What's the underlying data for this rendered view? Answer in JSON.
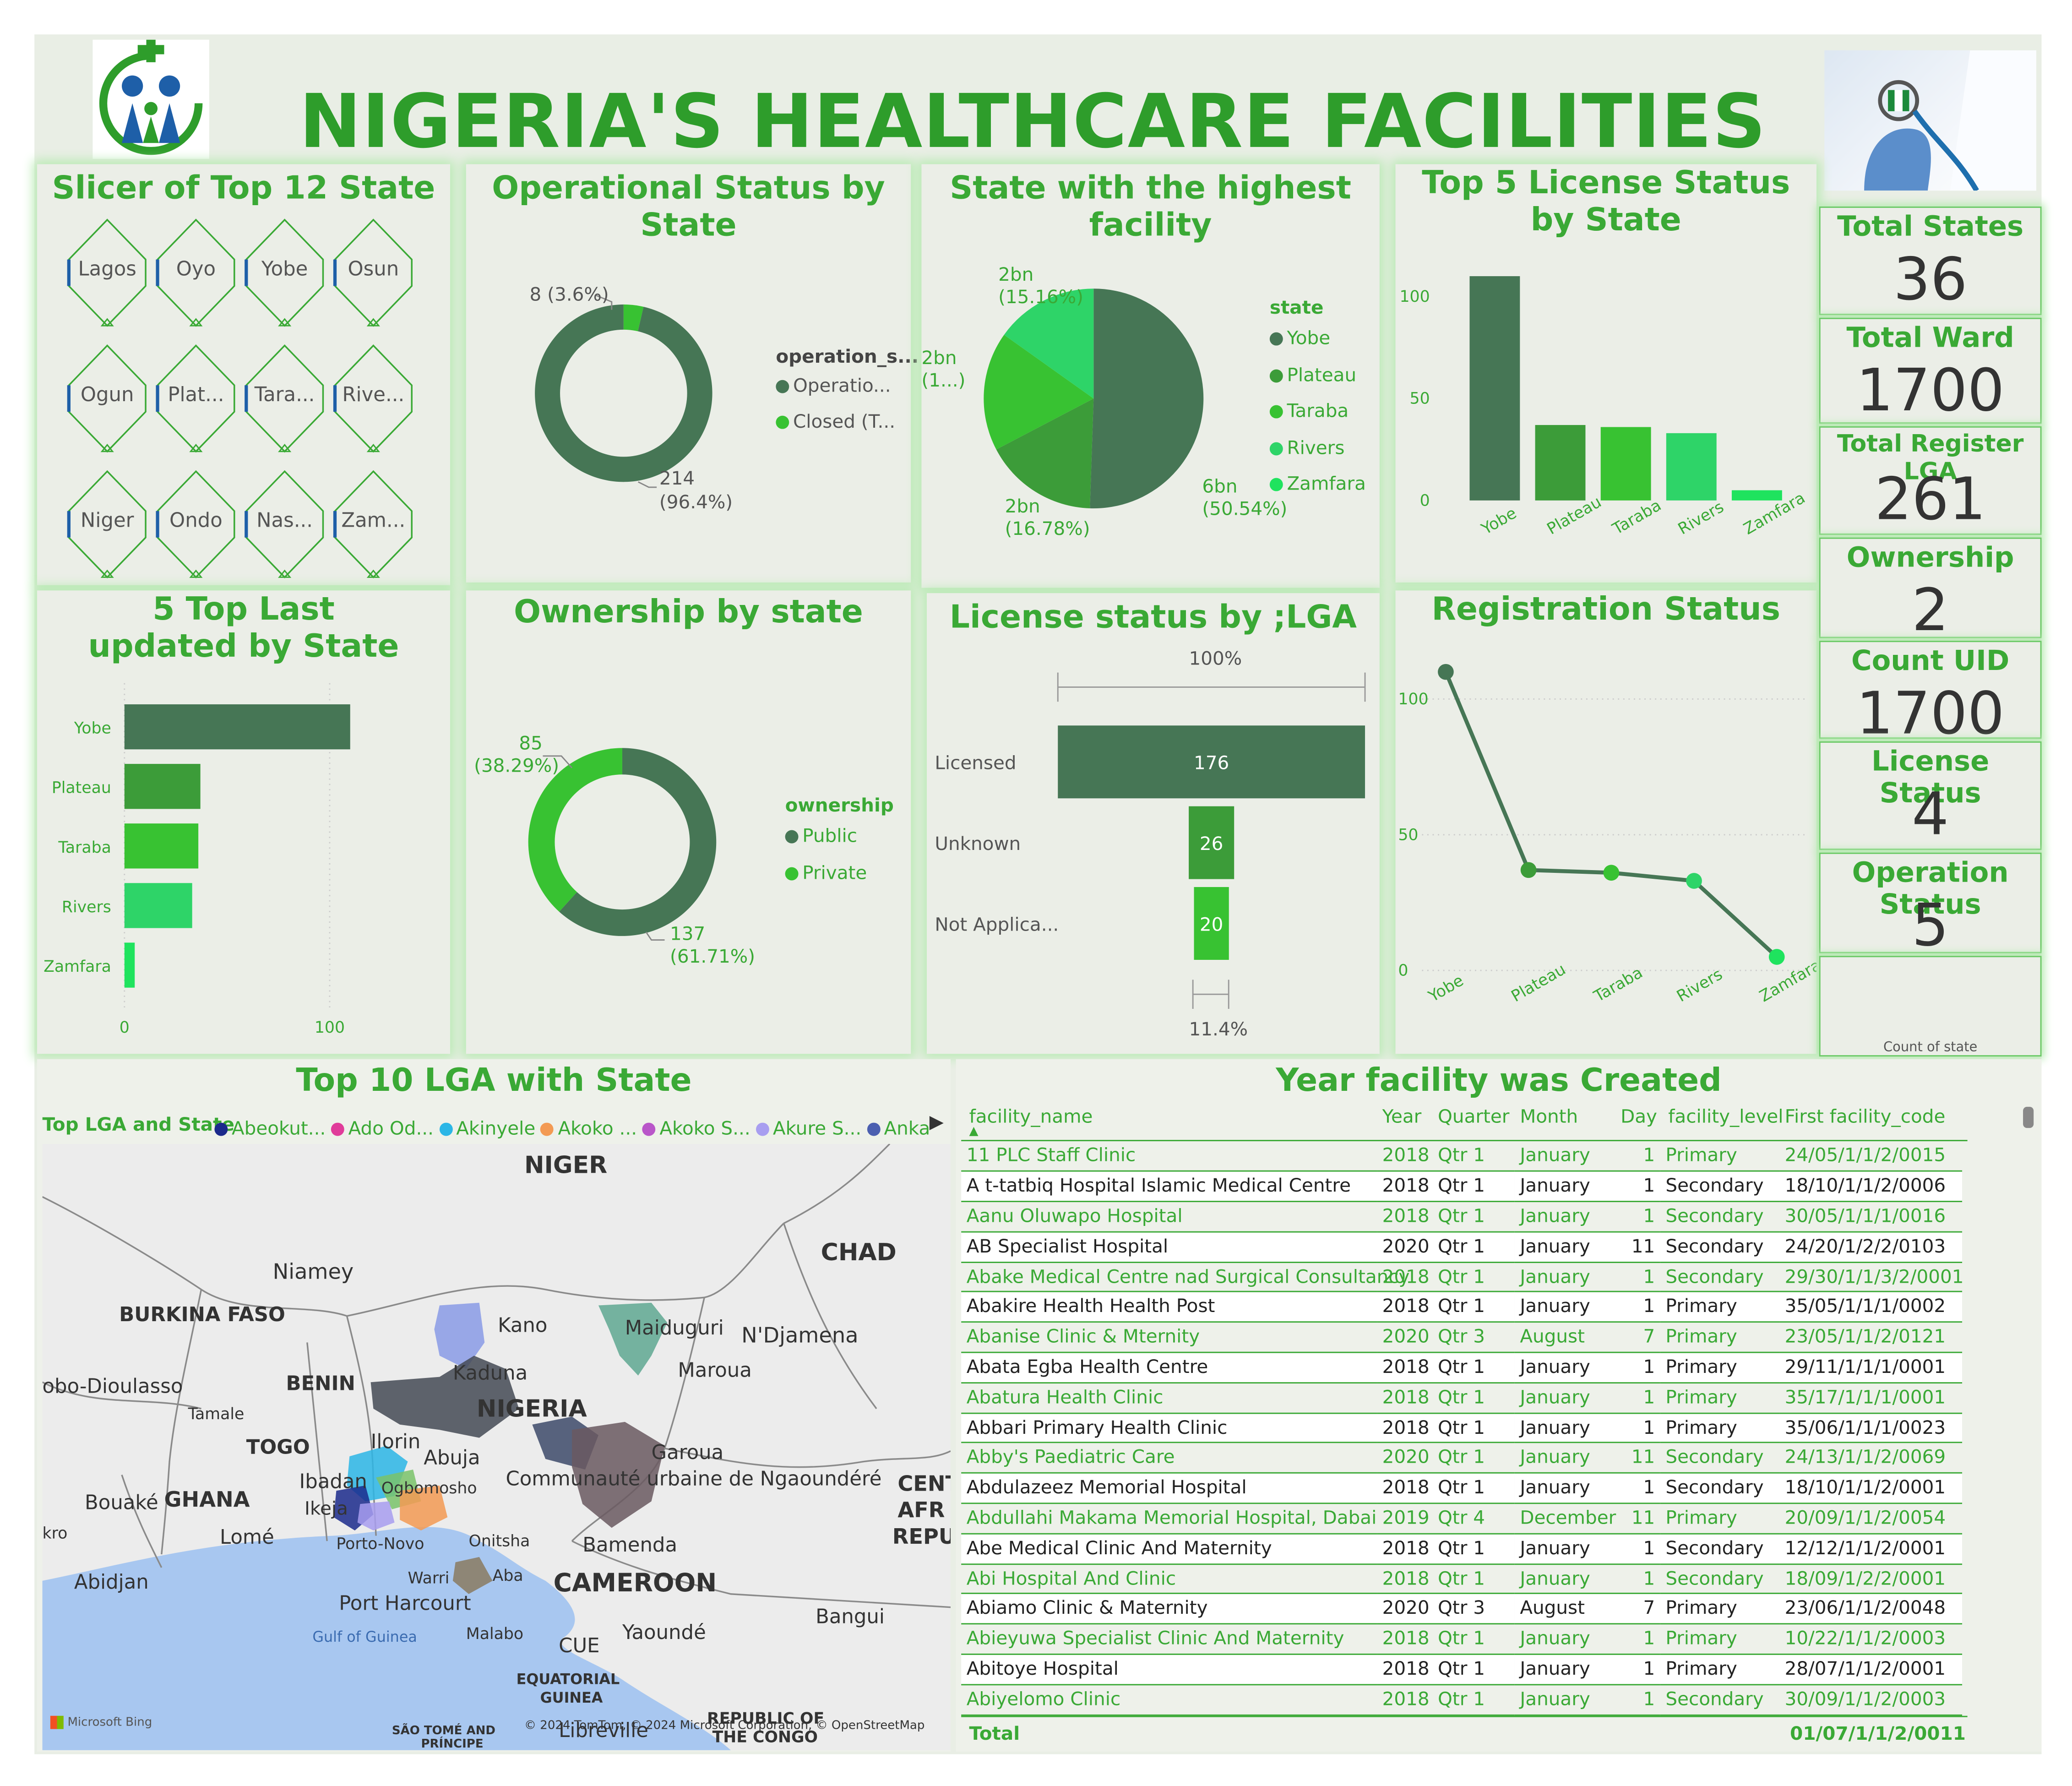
{
  "header": {
    "title": "NIGERIA'S HEALTHCARE FACILITIES"
  },
  "colors": {
    "accent": "#3aa935",
    "dark": "#467655",
    "green2": "#3c9c39",
    "green3": "#38c232",
    "green4": "#2ed468",
    "green5": "#1fe35e"
  },
  "slicer": {
    "title": "Slicer of Top 12 State",
    "items": [
      "Lagos",
      "Oyo",
      "Yobe",
      "Osun",
      "Ogun",
      "Plat...",
      "Tara...",
      "Rive...",
      "Niger",
      "Ondo",
      "Nas...",
      "Zam..."
    ]
  },
  "operational": {
    "title": "Operational Status by State",
    "legend_title": "operation_s...",
    "legend": [
      "Operatio...",
      "Closed (T..."
    ],
    "label_small": "8 (3.6%)",
    "label_big_value": "214",
    "label_big_pct": "(96.4%)"
  },
  "highest": {
    "title": "State with the highest facility",
    "legend_title": "state",
    "legend": [
      "Yobe",
      "Plateau",
      "Taraba",
      "Rivers",
      "Zamfara"
    ],
    "labels": [
      {
        "v": "6bn",
        "p": "(50.54%)"
      },
      {
        "v": "2bn",
        "p": "(16.78%)"
      },
      {
        "v": "2bn",
        "p": "(1...)"
      },
      {
        "v": "2bn",
        "p": "(15.16%)"
      }
    ]
  },
  "license_top5": {
    "title": "Top 5 License Status by State",
    "yticks": [
      "100",
      "50",
      "0"
    ]
  },
  "last_updated": {
    "title": "5 Top Last updated by State",
    "xticks": [
      "0",
      "100"
    ]
  },
  "ownership": {
    "title": "Ownership by state",
    "legend_title": "ownership",
    "legend": [
      "Public",
      "Private"
    ],
    "label_private_value": "85",
    "label_private_pct": "(38.29%)",
    "label_public_value": "137",
    "label_public_pct": "(61.71%)"
  },
  "license_lga": {
    "title": "License status by ;LGA",
    "top_label": "100%",
    "bottom_label": "11.4%",
    "rows": [
      {
        "label": "Licensed",
        "value": "176"
      },
      {
        "label": "Unknown",
        "value": "26"
      },
      {
        "label": "Not Applica...",
        "value": "20"
      }
    ]
  },
  "registration": {
    "title": "Registration Status",
    "yticks": [
      "100",
      "50",
      "0"
    ]
  },
  "kpis": [
    {
      "label": "Total States",
      "value": "36"
    },
    {
      "label": "Total Ward",
      "value": "1700"
    },
    {
      "label": "Total Register LGA",
      "value": "261"
    },
    {
      "label": "Ownership",
      "value": "2"
    },
    {
      "label": "Count UID",
      "value": "1700"
    },
    {
      "label": "License Status",
      "value": "4"
    },
    {
      "label": "Operation Status",
      "value": "5"
    },
    {
      "label": "",
      "value": ""
    }
  ],
  "kpi_footer": "Count of state",
  "map": {
    "title": "Top 10 LGA with State",
    "legend_title": "Top LGA and State",
    "legend": [
      {
        "name": "Abeokut...",
        "color": "#1b2a8c"
      },
      {
        "name": "Ado Od...",
        "color": "#e03c9a"
      },
      {
        "name": "Akinyele",
        "color": "#2bb6e6"
      },
      {
        "name": "Akoko ...",
        "color": "#f39a53"
      },
      {
        "name": "Akoko S...",
        "color": "#b956c9"
      },
      {
        "name": "Akure S...",
        "color": "#a89ef0"
      },
      {
        "name": "Anka",
        "color": "#4b5fb0"
      }
    ],
    "places": [
      "NIGER",
      "CHAD",
      "Niamey",
      "BURKINA FASO",
      "Kano",
      "Maiduguri",
      "N'Djamena",
      "Kaduna",
      "Maroua",
      "obo-Dioulasso",
      "BENIN",
      "NIGERIA",
      "Tamale",
      "TOGO",
      "Ilorin",
      "Abuja",
      "Garoua",
      "Communauté urbaine de Ngaoundéré",
      "CENT",
      "AFR",
      "REPU",
      "Ibadan",
      "Ogbomosho",
      "Bouaké",
      "GHANA",
      "Ikeja",
      "kro",
      "Lomé",
      "Porto-Novo",
      "Onitsha",
      "Bamenda",
      "Warri",
      "Aba",
      "Abidjan",
      "CAMEROON",
      "Port Harcourt",
      "Bangui",
      "Gulf of Guinea",
      "Malabo",
      "Yaoundé",
      "CUE",
      "EQUATORIAL",
      "GUINEA",
      "Libreville",
      "REPUBLIC OF",
      "THE CONGO",
      "SÃO TOMÉ AND",
      "PRÍNCIPE"
    ],
    "bing": "Microsoft Bing",
    "copyright": "© 2024 TomTom, © 2024 Microsoft Corporation, © OpenStreetMap"
  },
  "table": {
    "title": "Year facility was Created",
    "columns": [
      "facility_name",
      "Year",
      "Quarter",
      "Month",
      "Day",
      "facility_level",
      "First facility_code"
    ],
    "rows": [
      [
        "11 PLC Staff Clinic",
        "2018",
        "Qtr 1",
        "January",
        "1",
        "Primary",
        "24/05/1/1/2/0015"
      ],
      [
        "A t-tatbiq Hospital Islamic Medical Centre",
        "2018",
        "Qtr 1",
        "January",
        "1",
        "Secondary",
        "18/10/1/1/2/0006"
      ],
      [
        "Aanu Oluwapo Hospital",
        "2018",
        "Qtr 1",
        "January",
        "1",
        "Secondary",
        "30/05/1/1/1/0016"
      ],
      [
        "AB Specialist Hospital",
        "2020",
        "Qtr 1",
        "January",
        "11",
        "Secondary",
        "24/20/1/2/2/0103"
      ],
      [
        "Abake Medical Centre nad Surgical Consultancy",
        "2018",
        "Qtr 1",
        "January",
        "1",
        "Secondary",
        "29/30/1/1/3/2/0001"
      ],
      [
        "Abakire Health Health Post",
        "2018",
        "Qtr 1",
        "January",
        "1",
        "Primary",
        "35/05/1/1/1/0002"
      ],
      [
        "Abanise Clinic & Mternity",
        "2020",
        "Qtr 3",
        "August",
        "7",
        "Primary",
        "23/05/1/1/2/0121"
      ],
      [
        "Abata Egba Health Centre",
        "2018",
        "Qtr 1",
        "January",
        "1",
        "Primary",
        "29/11/1/1/1/0001"
      ],
      [
        "Abatura Health Clinic",
        "2018",
        "Qtr 1",
        "January",
        "1",
        "Primary",
        "35/17/1/1/1/0001"
      ],
      [
        "Abbari Primary Health Clinic",
        "2018",
        "Qtr 1",
        "January",
        "1",
        "Primary",
        "35/06/1/1/1/0023"
      ],
      [
        "Abby's Paediatric Care",
        "2020",
        "Qtr 1",
        "January",
        "11",
        "Secondary",
        "24/13/1/1/2/0069"
      ],
      [
        "Abdulazeez Memorial Hospital",
        "2018",
        "Qtr 1",
        "January",
        "1",
        "Secondary",
        "18/10/1/1/2/0001"
      ],
      [
        "Abdullahi Makama Memorial Hospital, Dabai",
        "2019",
        "Qtr 4",
        "December",
        "11",
        "Primary",
        "20/09/1/1/2/0054"
      ],
      [
        "Abe Medical Clinic And Maternity",
        "2018",
        "Qtr 1",
        "January",
        "1",
        "Secondary",
        "12/12/1/1/2/0001"
      ],
      [
        "Abi Hospital And Clinic",
        "2018",
        "Qtr 1",
        "January",
        "1",
        "Secondary",
        "18/09/1/2/2/0001"
      ],
      [
        "Abiamo Clinic & Maternity",
        "2020",
        "Qtr 3",
        "August",
        "7",
        "Primary",
        "23/06/1/1/2/0048"
      ],
      [
        "Abieyuwa Specialist Clinic And Maternity",
        "2018",
        "Qtr 1",
        "January",
        "1",
        "Primary",
        "10/22/1/1/2/0003"
      ],
      [
        "Abitoye Hospital",
        "2018",
        "Qtr 1",
        "January",
        "1",
        "Primary",
        "28/07/1/1/2/0001"
      ],
      [
        "Abiyelomo Clinic",
        "2018",
        "Qtr 1",
        "January",
        "1",
        "Secondary",
        "30/09/1/1/2/0003"
      ]
    ],
    "total_label": "Total",
    "total_code": "01/07/1/1/2/0011"
  },
  "chart_data": [
    {
      "type": "pie",
      "title": "Operational Status by State",
      "categories": [
        "Operatio...",
        "Closed (T..."
      ],
      "values": [
        214,
        8
      ]
    },
    {
      "type": "pie",
      "title": "State with the highest facility",
      "categories": [
        "Yobe",
        "Plateau",
        "Taraba",
        "Rivers"
      ],
      "values": [
        50.54,
        16.78,
        17.52,
        15.16
      ]
    },
    {
      "type": "bar",
      "title": "Top 5 License Status by State",
      "categories": [
        "Yobe",
        "Plateau",
        "Taraba",
        "Rivers",
        "Zamfara"
      ],
      "values": [
        110,
        37,
        36,
        33,
        5
      ],
      "ylim": [
        0,
        120
      ]
    },
    {
      "type": "bar",
      "title": "5 Top Last updated by State",
      "categories": [
        "Yobe",
        "Plateau",
        "Taraba",
        "Rivers",
        "Zamfara"
      ],
      "values": [
        110,
        37,
        36,
        33,
        5
      ],
      "xlim": [
        0,
        130
      ]
    },
    {
      "type": "pie",
      "title": "Ownership by state",
      "categories": [
        "Public",
        "Private"
      ],
      "values": [
        137,
        85
      ]
    },
    {
      "type": "bar",
      "title": "License status by ;LGA",
      "categories": [
        "Licensed",
        "Unknown",
        "Not Applica..."
      ],
      "values": [
        176,
        26,
        20
      ]
    },
    {
      "type": "line",
      "title": "Registration Status",
      "categories": [
        "Yobe",
        "Plateau",
        "Taraba",
        "Rivers",
        "Zamfara"
      ],
      "values": [
        110,
        37,
        36,
        33,
        5
      ],
      "ylim": [
        0,
        120
      ]
    }
  ]
}
